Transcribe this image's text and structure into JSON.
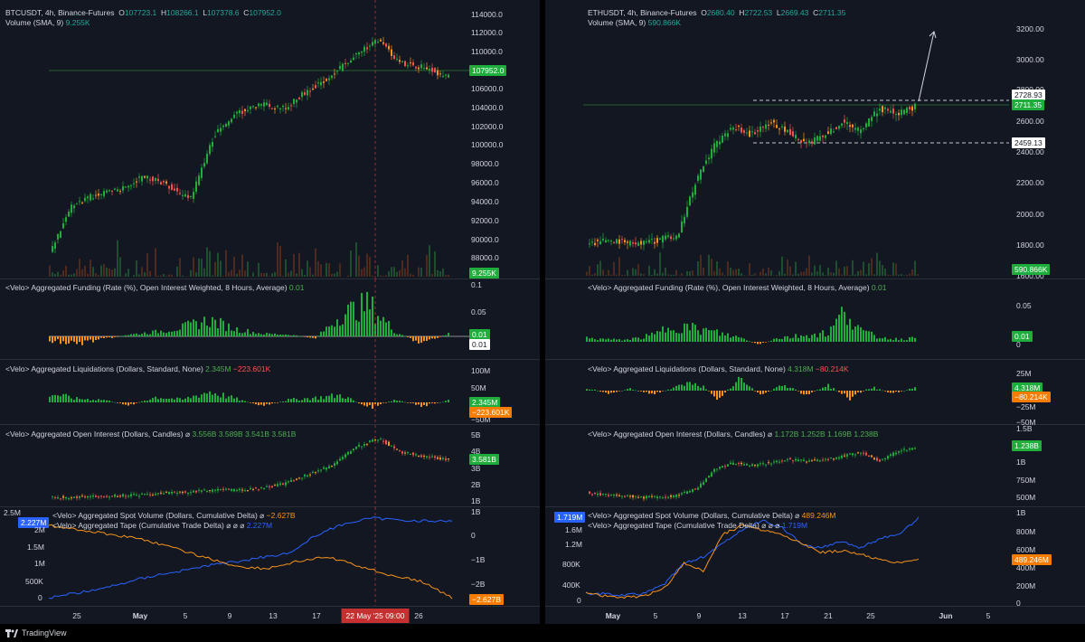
{
  "left": {
    "price": {
      "symbol_line": "BTCUSDT, 4h, Binance-Futures",
      "o_label": "O",
      "o": "107723.1",
      "h_label": "H",
      "h": "108266.1",
      "l_label": "L",
      "l": "107378.6",
      "c_label": "C",
      "c": "107952.0",
      "volume_label": "Volume (SMA, 9)",
      "volume": "9.255K",
      "ticks": [
        "114000.0",
        "112000.0",
        "110000.0",
        "106000.0",
        "104000.0",
        "102000.0",
        "100000.0",
        "98000.0",
        "96000.0",
        "94000.0",
        "92000.0",
        "90000.0",
        "88000.0"
      ],
      "last_price_tag": "107952.0",
      "volume_tag": "9.255K"
    },
    "funding": {
      "title": "<Velo> Aggregated Funding (Rate (%), Open Interest Weighted, 8 Hours, Average)",
      "value": "0.01",
      "ticks": [
        "0.1",
        "0.05"
      ],
      "tag1": "0.01",
      "tag2": "0.01"
    },
    "liq": {
      "title": "<Velo> Aggregated Liquidations (Dollars, Standard, None)",
      "v1": "2.345M",
      "v2": "−223.601K",
      "ticks": [
        "100M",
        "50M",
        "−50M"
      ],
      "tag1": "2.345M",
      "tag2": "−223.601K"
    },
    "oi": {
      "title": "<Velo> Aggregated Open Interest (Dollars, Candles)",
      "sym": "⌀",
      "v1": "3.556B",
      "v2": "3.589B",
      "v3": "3.541B",
      "v4": "3.581B",
      "ticks": [
        "5B",
        "4B",
        "3B",
        "2B",
        "1B"
      ],
      "tag": "3.581B"
    },
    "spot": {
      "title1": "<Velo> Aggregated Spot Volume (Dollars, Cumulative Delta)",
      "v1": "−2.627B",
      "title2": "<Velo> Aggregated Tape (Cumulative Trade Delta)",
      "sym": "⌀",
      "v2": "2.227M",
      "right_ticks": [
        "1B",
        "0",
        "−1B",
        "−2B"
      ],
      "left_ticks": [
        "2.5M",
        "2M",
        "1.5M",
        "1M",
        "500K",
        "0"
      ],
      "left_tag": "2.227M",
      "right_tag": "−2.627B"
    },
    "xaxis": [
      "25",
      "May",
      "5",
      "9",
      "13",
      "17",
      "26"
    ],
    "cursor_label": "22 May '25   09:00"
  },
  "right": {
    "price": {
      "symbol_line": "ETHUSDT, 4h, Binance-Futures",
      "o_label": "O",
      "o": "2680.40",
      "h_label": "H",
      "h": "2722.53",
      "l_label": "L",
      "l": "2669.43",
      "c_label": "C",
      "c": "2711.35",
      "volume_label": "Volume (SMA, 9)",
      "volume": "590.866K",
      "ticks": [
        "3200.00",
        "3000.00",
        "2800.00",
        "2600.00",
        "2400.00",
        "2200.00",
        "2000.00",
        "1800.00",
        "1600.00"
      ],
      "tag_white1": "2728.93",
      "tag_green": "2711.35",
      "tag_white2": "2459.13",
      "volume_tag": "590.866K"
    },
    "funding": {
      "title": "<Velo> Aggregated Funding (Rate (%), Open Interest Weighted, 8 Hours, Average)",
      "value": "0.01",
      "ticks": [
        "0.05",
        "0"
      ],
      "tag": "0.01"
    },
    "liq": {
      "title": "<Velo> Aggregated Liquidations (Dollars, Standard, None)",
      "v1": "4.318M",
      "v2": "−80.214K",
      "ticks": [
        "25M",
        "−25M",
        "−50M"
      ],
      "tag1": "4.318M",
      "tag2": "−80.214K"
    },
    "oi": {
      "title": "<Velo> Aggregated Open Interest (Dollars, Candles)",
      "sym": "⌀",
      "v1": "1.172B",
      "v2": "1.252B",
      "v3": "1.169B",
      "v4": "1.238B",
      "ticks": [
        "1.5B",
        "1B",
        "750M",
        "500M"
      ],
      "tag": "1.238B"
    },
    "spot": {
      "title1": "<Velo> Aggregated Spot Volume (Dollars, Cumulative Delta)",
      "v1": "489.246M",
      "title2": "<Velo> Aggregated Tape (Cumulative Trade Delta)",
      "sym": "⌀",
      "v2": "1.719M",
      "right_ticks": [
        "1B",
        "800M",
        "600M",
        "400M",
        "200M",
        "0"
      ],
      "left_ticks": [
        "1.6M",
        "1.2M",
        "800K",
        "400K",
        "0"
      ],
      "left_tag": "1.719M",
      "right_tag": "489.246M"
    },
    "xaxis": [
      "May",
      "5",
      "9",
      "13",
      "17",
      "21",
      "25",
      "Jun",
      "5"
    ]
  },
  "footer": {
    "brand": "TradingView"
  },
  "colors": {
    "up": "#26a69a",
    "green": "#1fae3b",
    "down": "#ef5350",
    "orange": "#f7931a",
    "blue": "#2962ff",
    "bg": "#131722"
  }
}
